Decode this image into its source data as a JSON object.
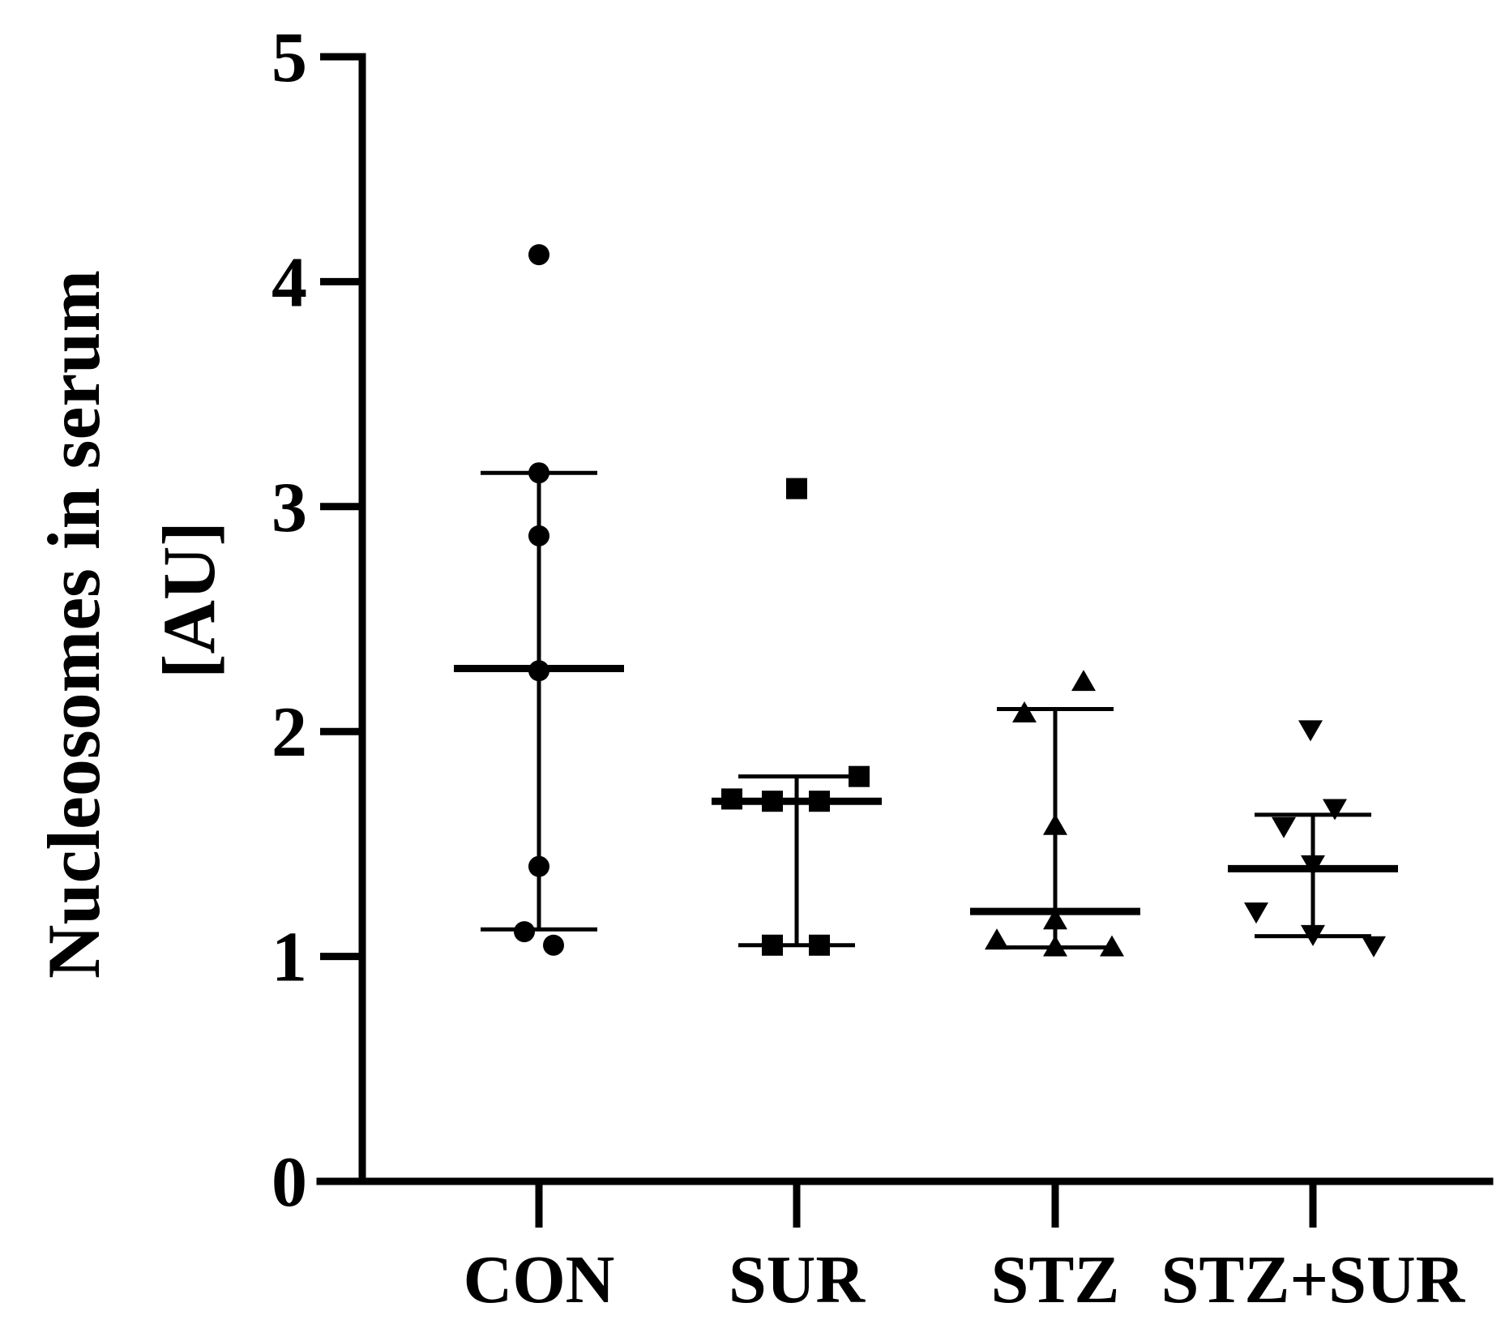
{
  "chart_data": {
    "type": "scatter",
    "title": "",
    "xlabel": "",
    "ylabel": "Nucleosomes in serum",
    "ylabel_unit": "[AU]",
    "ylim": [
      0,
      5
    ],
    "yticks": [
      0,
      1,
      2,
      3,
      4,
      5
    ],
    "grid": false,
    "legend": "none",
    "color": "#000000",
    "categories": [
      "CON",
      "SUR",
      "STZ",
      "STZ+SUR"
    ],
    "groups": [
      {
        "name": "CON",
        "marker": "circle",
        "points": [
          4.12,
          3.15,
          2.87,
          2.27,
          1.4,
          1.11,
          1.05
        ],
        "mean": 2.28,
        "sd_upper": 3.15,
        "sd_lower": 1.12
      },
      {
        "name": "SUR",
        "marker": "square",
        "points": [
          3.08,
          1.8,
          1.7,
          1.69,
          1.69,
          1.05,
          1.05
        ],
        "mean": 1.69,
        "sd_upper": 1.8,
        "sd_lower": 1.05
      },
      {
        "name": "STZ",
        "marker": "triangle-up",
        "points": [
          2.22,
          2.08,
          1.58,
          1.16,
          1.07,
          1.04,
          1.04
        ],
        "mean": 1.2,
        "sd_upper": 2.1,
        "sd_lower": 1.04
      },
      {
        "name": "STZ+SUR",
        "marker": "triangle-down",
        "points": [
          2.01,
          1.66,
          1.58,
          1.41,
          1.2,
          1.1,
          1.05
        ],
        "mean": 1.39,
        "sd_upper": 1.63,
        "sd_lower": 1.09
      }
    ]
  }
}
